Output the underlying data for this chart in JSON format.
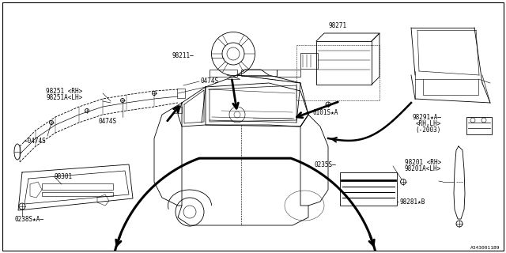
{
  "bg_color": "#ffffff",
  "line_color": "#000000",
  "diagram_id": "A343001189",
  "font_size": 5.5,
  "lw": 0.6,
  "parts": {
    "98251_RH": "98251 <RH>",
    "98251A_LH": "98251A<LH>",
    "0474S": "0474S",
    "98211": "98211",
    "98271": "98271",
    "0101S_A": "0101S★A",
    "98301": "98301",
    "0238S_A": "0238S★A",
    "0235S": "0235S",
    "98281_B": "98281★B",
    "98291_A": "98291★A",
    "RH_LH": "<RH,LH>",
    "2003": "(-2003)",
    "98201_RH": "98201 <RH>",
    "98201A_LH": "98201A<LH>"
  }
}
